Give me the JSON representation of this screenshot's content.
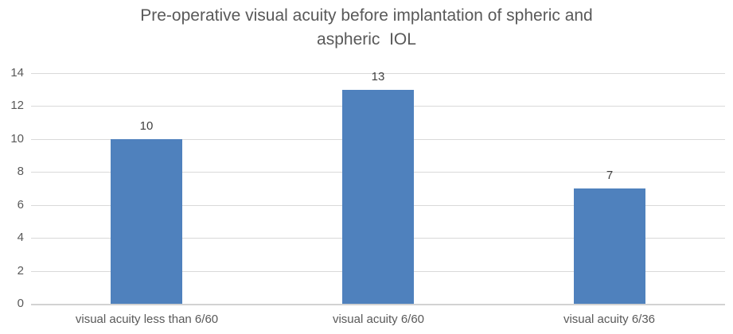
{
  "chart_data": {
    "type": "bar",
    "title": "Pre-operative visual acuity before implantation of spheric and aspheric  IOL",
    "title_lines": [
      "Pre-operative visual acuity before implantation of spheric and",
      "aspheric  IOL"
    ],
    "categories": [
      "visual acuity less than 6/60",
      "visual acuity 6/60",
      "visual acuity 6/36"
    ],
    "values": [
      10,
      13,
      7
    ],
    "data_labels": [
      "10",
      "13",
      "7"
    ],
    "xlabel": "",
    "ylabel": "",
    "ylim": [
      0,
      14
    ],
    "yticks": [
      0,
      2,
      4,
      6,
      8,
      10,
      12,
      14
    ],
    "grid": true,
    "legend": "none",
    "colors": {
      "bar": "#4F81BD",
      "gridline": "#D9D9D9",
      "baseline": "#D2D2D2",
      "title_text": "#595959",
      "axis_text": "#595959",
      "value_label_text": "#404040"
    }
  }
}
